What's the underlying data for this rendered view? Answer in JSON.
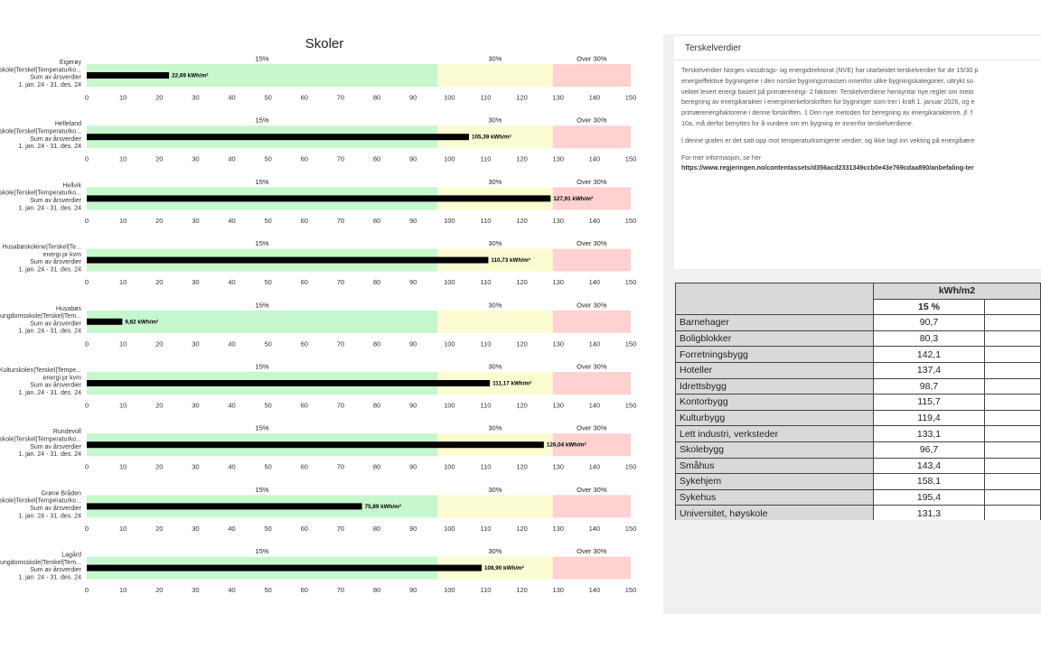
{
  "chart_title": "Skoler",
  "chart_data": [
    {
      "type": "bar",
      "name": "Eigerøy",
      "labels": [
        "Eigerøy",
        "skole|Terskel|Temperaturko...",
        "Sum av årsverdier",
        "1. jan. 24 - 31. des. 24"
      ],
      "value": 22.69,
      "value_label": "22,69 kWh/m²",
      "xlim": [
        0,
        150
      ],
      "ticks": [
        0,
        10,
        20,
        30,
        40,
        50,
        60,
        70,
        80,
        90,
        100,
        110,
        120,
        130,
        140,
        150
      ],
      "bands": [
        {
          "label": "15%",
          "from": 0,
          "to": 96.7,
          "color": "#c6f7cd"
        },
        {
          "label": "30%",
          "from": 96.7,
          "to": 128.5,
          "color": "#fcfcd2"
        },
        {
          "label": "Over 30%",
          "from": 128.5,
          "to": 150,
          "color": "#ffd1d1"
        }
      ]
    },
    {
      "type": "bar",
      "name": "Helleland",
      "labels": [
        "Helleland",
        "skole|Terskel|Temperaturko...",
        "Sum av årsverdier",
        "1. jan. 24 - 31. des. 24"
      ],
      "value": 105.39,
      "value_label": "105,39 kWh/m²",
      "xlim": [
        0,
        150
      ],
      "ticks": [
        0,
        10,
        20,
        30,
        40,
        50,
        60,
        70,
        80,
        90,
        100,
        110,
        120,
        130,
        140,
        150
      ],
      "bands": [
        {
          "label": "15%",
          "from": 0,
          "to": 96.7,
          "color": "#c6f7cd"
        },
        {
          "label": "30%",
          "from": 96.7,
          "to": 128.5,
          "color": "#fcfcd2"
        },
        {
          "label": "Over 30%",
          "from": 128.5,
          "to": 150,
          "color": "#ffd1d1"
        }
      ]
    },
    {
      "type": "bar",
      "name": "Hellvik",
      "labels": [
        "Hellvik",
        "skole|Terskel|Temperaturko...",
        "Sum av årsverdier",
        "1. jan. 24 - 31. des. 24"
      ],
      "value": 127.91,
      "value_label": "127,91 kWh/m²",
      "xlim": [
        0,
        150
      ],
      "ticks": [
        0,
        10,
        20,
        30,
        40,
        50,
        60,
        70,
        80,
        90,
        100,
        110,
        120,
        130,
        140,
        150
      ],
      "bands": [
        {
          "label": "15%",
          "from": 0,
          "to": 96.7,
          "color": "#c6f7cd"
        },
        {
          "label": "30%",
          "from": 96.7,
          "to": 128.5,
          "color": "#fcfcd2"
        },
        {
          "label": "Over 30%",
          "from": 128.5,
          "to": 150,
          "color": "#ffd1d1"
        }
      ]
    },
    {
      "type": "bar",
      "name": "Husabøskolene",
      "labels": [
        "Husabøskolene|Terskel|Te...",
        "energi pr kvm",
        "Sum av årsverdier",
        "1. jan. 24 - 31. des. 24"
      ],
      "value": 110.73,
      "value_label": "110,73 kWh/m²",
      "xlim": [
        0,
        150
      ],
      "ticks": [
        0,
        10,
        20,
        30,
        40,
        50,
        60,
        70,
        80,
        90,
        100,
        110,
        120,
        130,
        140,
        150
      ],
      "bands": [
        {
          "label": "15%",
          "from": 0,
          "to": 96.7,
          "color": "#c6f7cd"
        },
        {
          "label": "30%",
          "from": 96.7,
          "to": 128.5,
          "color": "#fcfcd2"
        },
        {
          "label": "Over 30%",
          "from": 128.5,
          "to": 150,
          "color": "#ffd1d1"
        }
      ]
    },
    {
      "type": "bar",
      "name": "Husabøs",
      "labels": [
        "Husabøs",
        "ungdomsskole|Terskel|Tem...",
        "Sum av årsverdier",
        "1. jan. 24 - 31. des. 24"
      ],
      "value": 9.82,
      "value_label": "9,82 kWh/m²",
      "xlim": [
        0,
        150
      ],
      "ticks": [
        0,
        10,
        20,
        30,
        40,
        50,
        60,
        70,
        80,
        90,
        100,
        110,
        120,
        130,
        140,
        150
      ],
      "bands": [
        {
          "label": "15%",
          "from": 0,
          "to": 96.7,
          "color": "#c6f7cd"
        },
        {
          "label": "30%",
          "from": 96.7,
          "to": 128.5,
          "color": "#fcfcd2"
        },
        {
          "label": "Over 30%",
          "from": 128.5,
          "to": 150,
          "color": "#ffd1d1"
        }
      ]
    },
    {
      "type": "bar",
      "name": "Kulturskolen",
      "labels": [
        "Kulturskolen|Terskel|Tempe...",
        "energi pr kvm",
        "Sum av årsverdier",
        "1. jan. 24 - 31. des. 24"
      ],
      "value": 111.17,
      "value_label": "111,17 kWh/m²",
      "xlim": [
        0,
        150
      ],
      "ticks": [
        0,
        10,
        20,
        30,
        40,
        50,
        60,
        70,
        80,
        90,
        100,
        110,
        120,
        130,
        140,
        150
      ],
      "bands": [
        {
          "label": "15%",
          "from": 0,
          "to": 96.7,
          "color": "#c6f7cd"
        },
        {
          "label": "30%",
          "from": 96.7,
          "to": 128.5,
          "color": "#fcfcd2"
        },
        {
          "label": "Over 30%",
          "from": 128.5,
          "to": 150,
          "color": "#ffd1d1"
        }
      ]
    },
    {
      "type": "bar",
      "name": "Rundevoll",
      "labels": [
        "Rundevoll",
        "skole|Terskel|Temperaturko...",
        "Sum av årsverdier",
        "1. jan. 24 - 31. des. 24"
      ],
      "value": 126.04,
      "value_label": "126,04 kWh/m²",
      "xlim": [
        0,
        150
      ],
      "ticks": [
        0,
        10,
        20,
        30,
        40,
        50,
        60,
        70,
        80,
        90,
        100,
        110,
        120,
        130,
        140,
        150
      ],
      "bands": [
        {
          "label": "15%",
          "from": 0,
          "to": 96.7,
          "color": "#c6f7cd"
        },
        {
          "label": "30%",
          "from": 96.7,
          "to": 128.5,
          "color": "#fcfcd2"
        },
        {
          "label": "Over 30%",
          "from": 128.5,
          "to": 150,
          "color": "#ffd1d1"
        }
      ]
    },
    {
      "type": "bar",
      "name": "Grøne Bråden",
      "labels": [
        "Grøne Bråden",
        "skole|Terskel|Temperaturko...",
        "Sum av årsverdier",
        "1. jan. 24 - 31. des. 24"
      ],
      "value": 75.89,
      "value_label": "75,89 kWh/m²",
      "xlim": [
        0,
        150
      ],
      "ticks": [
        0,
        10,
        20,
        30,
        40,
        50,
        60,
        70,
        80,
        90,
        100,
        110,
        120,
        130,
        140,
        150
      ],
      "bands": [
        {
          "label": "15%",
          "from": 0,
          "to": 96.7,
          "color": "#c6f7cd"
        },
        {
          "label": "30%",
          "from": 96.7,
          "to": 128.5,
          "color": "#fcfcd2"
        },
        {
          "label": "Over 30%",
          "from": 128.5,
          "to": 150,
          "color": "#ffd1d1"
        }
      ]
    },
    {
      "type": "bar",
      "name": "Lagård",
      "labels": [
        "Lagård",
        "ungdomsskole|Terskel|Tem...",
        "Sum av årsverdier",
        "1. jan. 24 - 31. des. 24"
      ],
      "value": 108.9,
      "value_label": "108,90 kWh/m²",
      "xlim": [
        0,
        150
      ],
      "ticks": [
        0,
        10,
        20,
        30,
        40,
        50,
        60,
        70,
        80,
        90,
        100,
        110,
        120,
        130,
        140,
        150
      ],
      "bands": [
        {
          "label": "15%",
          "from": 0,
          "to": 96.7,
          "color": "#c6f7cd"
        },
        {
          "label": "30%",
          "from": 96.7,
          "to": 128.5,
          "color": "#fcfcd2"
        },
        {
          "label": "Over 30%",
          "from": 128.5,
          "to": 150,
          "color": "#ffd1d1"
        }
      ]
    }
  ],
  "info_card": {
    "title": "Terskelverdier",
    "lines": [
      "Terskelverdier Norges vassdrags- og energidirektorat (NVE) har utarbeidet terskelverdier for de 15/30 p",
      "energieffektive bygningene i den norske bygningsmassen innenfor ulike bygningskategorier, uttrykt so",
      "vektet levert energi basert på primærenergi- 2 faktorer. Terskelverdiene hensyntar nye regler om meto",
      "beregning av energikarakter i energimerkeforskriften for bygninger som trer i kraft 1. januar 2026, og e",
      "primærenergifaktorene i denne forskriften. 1 Den nye metoden for beregning av energikarakteren, jf. f",
      "10a, må derfor benyttes for å vurdere om en bygning er innenfor terskelverdiene."
    ],
    "paragraph2": "I denne grafen er det satt opp mot temperaturkorrigerte verdier, og ikke lagt inn vekting på energibære",
    "paragraph3": "For mer informasjon, se her",
    "link": "https://www.regjeringen.no/contentassets/d356acd2331349ccb0e43e769cdaa890/anbefaling-ter"
  },
  "table": {
    "unit_header": "kWh/m2",
    "col_header": "15 %",
    "rows": [
      {
        "category": "Barnehager",
        "value": "90,7"
      },
      {
        "category": "Boligblokker",
        "value": "80,3"
      },
      {
        "category": "Forretningsbygg",
        "value": "142,1"
      },
      {
        "category": "Hoteller",
        "value": "137,4"
      },
      {
        "category": "Idrettsbygg",
        "value": "98,7"
      },
      {
        "category": "Kontorbygg",
        "value": "115,7"
      },
      {
        "category": "Kulturbygg",
        "value": "119,4"
      },
      {
        "category": "Lett industri, verksteder",
        "value": "133,1"
      },
      {
        "category": "Skolebygg",
        "value": "96,7"
      },
      {
        "category": "Småhus",
        "value": "143,4"
      },
      {
        "category": "Sykehjem",
        "value": "158,1"
      },
      {
        "category": "Sykehus",
        "value": "195,4"
      },
      {
        "category": "Universitet, høyskole",
        "value": "131,3"
      }
    ]
  },
  "colors": {
    "band_15": "#c6f7cd",
    "band_30": "#fcfcd2",
    "band_over": "#ffd1d1",
    "bar": "#000000"
  }
}
